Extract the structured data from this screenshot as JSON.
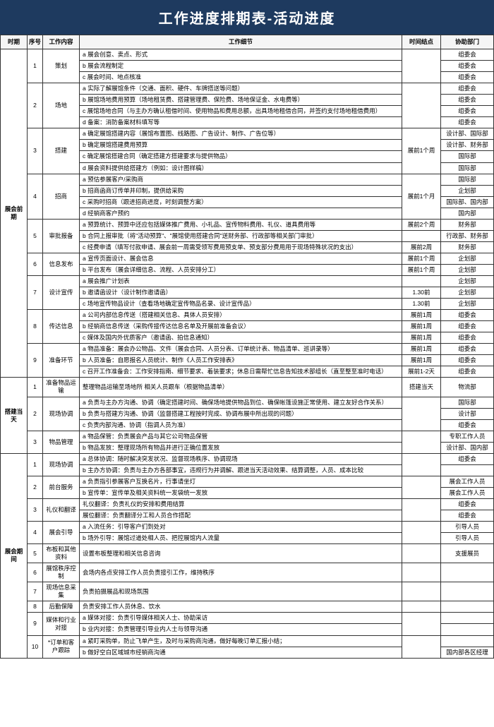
{
  "title": "工作进度排期表-活动进度",
  "headers": {
    "phase": "时期",
    "seq": "序号",
    "work": "工作内容",
    "detail": "工作细节",
    "time": "时间结点",
    "dept": "协助部门"
  },
  "phases": [
    {
      "name": "展会前期",
      "groups": [
        {
          "seq": "1",
          "work": "策划",
          "rows": [
            {
              "d": "a 展会创意、卖点、形式",
              "t": "",
              "p": "组委会"
            },
            {
              "d": "b 展会流程制定",
              "t": "",
              "p": "组委会"
            },
            {
              "d": "c 展会时间、地点核准",
              "t": "",
              "p": "组委会"
            }
          ]
        },
        {
          "seq": "2",
          "work": "场地",
          "rows": [
            {
              "d": "a 实际了解展馆条件（交通、面积、硬件、车牌搭送等问题）",
              "t": "",
              "p": "组委会"
            },
            {
              "d": "b 展馆场地费用预算（场地租赁费、搭建管理费、保险费、场地保证金、水电费等）",
              "t": "",
              "p": "组委会"
            },
            {
              "d": "c 展馆场地合同（与主办方确认租借时间、使用物品和费用总额，出具场地租借合同，并签约支付场地租借费用）",
              "t": "",
              "p": "组委会"
            },
            {
              "d": "d 备案：消防备案材料填写等",
              "t": "",
              "p": "组委会"
            }
          ]
        },
        {
          "seq": "3",
          "work": "搭建",
          "rows": [
            {
              "d": "a 确定展馆搭建内容（展馆布置图、线路图、广告设计、制作、广告位等）",
              "t": "展前1个周",
              "p": "设计部、国际部"
            },
            {
              "d": "b 确定展馆搭建费用预算",
              "t": "",
              "p": "设计部、财务部"
            },
            {
              "d": "c 确定展馆搭建合同（确定搭建方搭建要求与提供物品）",
              "t": "",
              "p": "国际部"
            },
            {
              "d": "d 展会资料提供给搭建方（例如：设计图样稿）",
              "t": "",
              "p": "国际部"
            }
          ]
        },
        {
          "seq": "4",
          "work": "招商",
          "rows": [
            {
              "d": "a 预估参展客户/采购商",
              "t": "展前1个月",
              "p": "国际部"
            },
            {
              "d": "b 招商函商订传单并印制，提供给采购",
              "t": "",
              "p": "企划部"
            },
            {
              "d": "c 采购时招商（跟进招商进度，时刻调整方案）",
              "t": "",
              "p": "国际部、国内部"
            },
            {
              "d": "d 经销商客户预约",
              "t": "",
              "p": "国内部"
            }
          ]
        },
        {
          "seq": "5",
          "work": "审批报备",
          "rows": [
            {
              "d": "a 预算统计、预算中还应包括媒体推广费用、小礼品、宣传物料费用、礼仪、道具费用等",
              "t": "展前2个周",
              "p": "财务部"
            },
            {
              "d": "b 合同上报审批（将\"活动预算\"、\"展馆使用搭建合同\"送财务部、行政部等相关部门审批）",
              "t": "",
              "p": "行政部、财务部"
            },
            {
              "d": "c 经费申请（填写付款申请、展会前一周需受领写费用预支单、预支部分费用用于现场特殊状况的支出）",
              "t": "展前2周",
              "p": "财务部"
            }
          ]
        },
        {
          "seq": "6",
          "work": "信息发布",
          "rows": [
            {
              "d": "a 宣传页面设计、展会信息",
              "t": "展前1个周",
              "p": "企划部"
            },
            {
              "d": "b 平台发布（展会详细信息、流程、人员安排分工）",
              "t": "展前1个周",
              "p": "企划部"
            }
          ]
        },
        {
          "seq": "7",
          "work": "设计宣传",
          "rows": [
            {
              "d": "a 展会推广计划表",
              "t": "",
              "p": "企划部"
            },
            {
              "d": "b 邀请函设计（设计制作邀请函）",
              "t": "1.30前",
              "p": "企划部"
            },
            {
              "d": "c 场地宣传物品设计（查看场地确定宣传物品名录、设计宣传品）",
              "t": "1.30前",
              "p": "企划部"
            }
          ]
        },
        {
          "seq": "8",
          "work": "传达信息",
          "rows": [
            {
              "d": "a 公司内部信息传送（搭建相关信息、具体人员安排）",
              "t": "展前1周",
              "p": "组委会"
            },
            {
              "d": "b 经销商信息传送（采购传接传达信息名单及开展前准备会议）",
              "t": "展前1周",
              "p": "组委会"
            },
            {
              "d": "c 媒体及国内外优质客户（邀请函、拍信息通知）",
              "t": "展前1周",
              "p": "组委会"
            }
          ]
        },
        {
          "seq": "9",
          "work": "准备环节",
          "rows": [
            {
              "d": "a 物品准备：展会办公物品、文件（展会合同、人员分表、订单统计表、物品清单、巡讲录等）",
              "t": "展前1周",
              "p": "组委会"
            },
            {
              "d": "b 人员准备：自愿报名人员统计、制作《人员工作安排表》",
              "t": "展前1周",
              "p": "组委会"
            },
            {
              "d": "c 召开工作准备会：工作安排指南、细节要求、着装要求；休息日需帮忙信息告知技术部组长（直至整至准时电话）",
              "t": "展前1-2天",
              "p": "组委会"
            }
          ]
        }
      ]
    },
    {
      "name": "搭建当天",
      "groups": [
        {
          "seq": "1",
          "work": "准备物品运输",
          "rows": [
            {
              "d": "整理物品运输至场地所 相关人员跟车（根据物品清单）",
              "t": "搭建当天",
              "p": "物流部"
            }
          ]
        },
        {
          "seq": "2",
          "work": "现场协调",
          "rows": [
            {
              "d": "a 负责与主办方沟通、协调（确定搭建时间、确保场地提供物品到位、确保帐篷设施正常使用、建立友好合作关系）",
              "t": "",
              "p": "国际部"
            },
            {
              "d": "b 负责与搭建方沟通、协调（监督搭建工程按时完成、协调布展中所出现的问题）",
              "t": "",
              "p": "设计部"
            },
            {
              "d": "c 负责内部沟通、协调（指调人员为准）",
              "t": "",
              "p": "组委会"
            }
          ]
        },
        {
          "seq": "3",
          "work": "物品管理",
          "rows": [
            {
              "d": "a 物品保管：负责展会产品与其它公司物品保管",
              "t": "",
              "p": "专职工作人员"
            },
            {
              "d": "b 物品发放：整理现场所有物品并进行正确位置发放",
              "t": "",
              "p": "设计部、国内部"
            }
          ]
        }
      ]
    },
    {
      "name": "展会期间",
      "groups": [
        {
          "seq": "1",
          "work": "现场协调",
          "rows": [
            {
              "d": "a 总体协调：随时解决突发状况、监督现场秩序、协调现场",
              "t": "",
              "p": "组委会"
            },
            {
              "d": "b 主办方协调：负责与主办方各部事宜，违规行为并调解、跟进当天活动效果、结算调整，人员、成本比较",
              "t": "",
              "p": ""
            }
          ]
        },
        {
          "seq": "2",
          "work": "前台服务",
          "rows": [
            {
              "d": "a 负责指引参展客户互换名片，行事请坐灯",
              "t": "",
              "p": "展会工作人员"
            },
            {
              "d": "b 宣传单：宣传单及相关资料统一发袋统一发放",
              "t": "",
              "p": "展会工作人员"
            }
          ]
        },
        {
          "seq": "3",
          "work": "礼仪和翻译",
          "rows": [
            {
              "d": "礼仪翻译：负责礼仪的安排和费用结算",
              "t": "",
              "p": "组委会"
            },
            {
              "d": "展位翻译：负责翻译分工和人员合作搭配",
              "t": "",
              "p": "组委会"
            }
          ]
        },
        {
          "seq": "4",
          "work": "展会引导",
          "rows": [
            {
              "d": "a 入流任务：引导客户们到处对",
              "t": "",
              "p": "引导人员"
            },
            {
              "d": "b 场外引导：展馆过道处相人员、把控展馆内人流量",
              "t": "",
              "p": "引导人员"
            }
          ]
        },
        {
          "seq": "5",
          "work": "布板和其他资料",
          "rows": [
            {
              "d": "设置布板整理和相关信息咨询",
              "t": "",
              "p": "支援展员"
            }
          ]
        },
        {
          "seq": "6",
          "work": "展馆秩序控制",
          "rows": [
            {
              "d": "会场内各点安排工作人员负责接引工作，维持秩序",
              "t": "",
              "p": ""
            }
          ]
        },
        {
          "seq": "7",
          "work": "现场信息采集",
          "rows": [
            {
              "d": "负责拍摄展品和现场氛围",
              "t": "",
              "p": ""
            }
          ]
        },
        {
          "seq": "8",
          "work": "后勤保障",
          "rows": [
            {
              "d": "负责安排工作人员休息、饮水",
              "t": "",
              "p": ""
            }
          ]
        },
        {
          "seq": "9",
          "work": "媒体和行业对接",
          "rows": [
            {
              "d": "a 媒体对接：负责引导媒体相关人士、协助采访",
              "t": "",
              "p": ""
            },
            {
              "d": "b 业内对接：负责管理引导业内人士与领导沟通",
              "t": "",
              "p": ""
            }
          ]
        },
        {
          "seq": "10",
          "work": "*订单和客户跟踪",
          "rows": [
            {
              "d": "a 紧盯采购单，防止飞单产生，及时与采购商沟通，做好每晚订单汇报小结；",
              "t": "",
              "p": ""
            },
            {
              "d": "b 做好空白区域城市经销商沟通",
              "t": "",
              "p": "国内部各区经理"
            }
          ]
        }
      ]
    }
  ]
}
